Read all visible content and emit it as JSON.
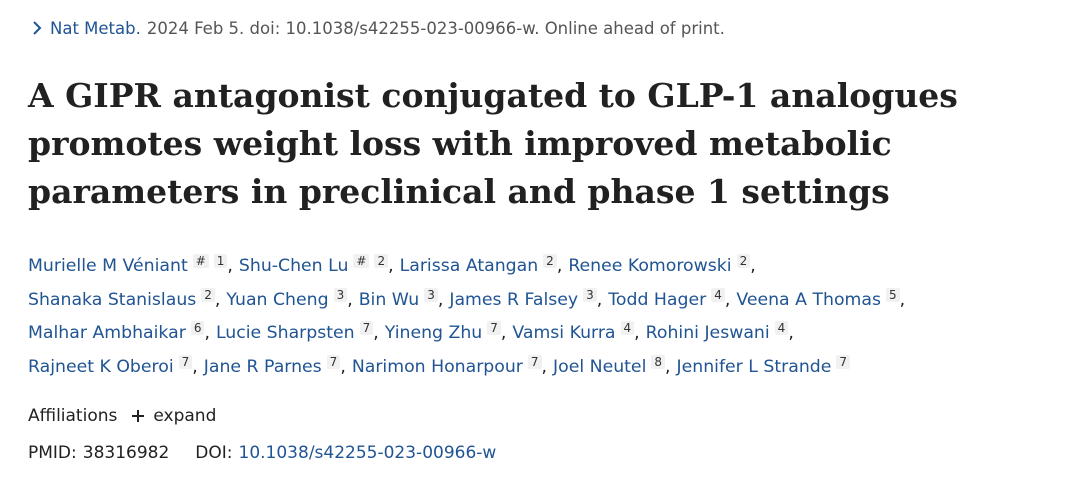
{
  "citation": {
    "journal": "Nat Metab.",
    "details": "2024 Feb 5. doi: 10.1038/s42255-023-00966-w. Online ahead of print."
  },
  "title_lines": [
    "A GIPR antagonist conjugated to GLP-1 analogues",
    "promotes weight loss with improved metabolic",
    "parameters in preclinical and phase 1 settings"
  ],
  "authors": [
    {
      "name": "Murielle M Véniant",
      "sup": [
        "#",
        "1"
      ]
    },
    {
      "name": "Shu-Chen Lu",
      "sup": [
        "#",
        "2"
      ]
    },
    {
      "name": "Larissa Atangan",
      "sup": [
        "2"
      ]
    },
    {
      "name": "Renee Komorowski",
      "sup": [
        "2"
      ]
    },
    {
      "name": "Shanaka Stanislaus",
      "sup": [
        "2"
      ]
    },
    {
      "name": "Yuan Cheng",
      "sup": [
        "3"
      ]
    },
    {
      "name": "Bin Wu",
      "sup": [
        "3"
      ]
    },
    {
      "name": "James R Falsey",
      "sup": [
        "3"
      ]
    },
    {
      "name": "Todd Hager",
      "sup": [
        "4"
      ]
    },
    {
      "name": "Veena A Thomas",
      "sup": [
        "5"
      ]
    },
    {
      "name": "Malhar Ambhaikar",
      "sup": [
        "6"
      ]
    },
    {
      "name": "Lucie Sharpsten",
      "sup": [
        "7"
      ]
    },
    {
      "name": "Yineng Zhu",
      "sup": [
        "7"
      ]
    },
    {
      "name": "Vamsi Kurra",
      "sup": [
        "4"
      ]
    },
    {
      "name": "Rohini Jeswani",
      "sup": [
        "4"
      ]
    },
    {
      "name": "Rajneet K Oberoi",
      "sup": [
        "7"
      ]
    },
    {
      "name": "Jane R Parnes",
      "sup": [
        "7"
      ]
    },
    {
      "name": "Narimon Honarpour",
      "sup": [
        "7"
      ]
    },
    {
      "name": "Joel Neutel",
      "sup": [
        "8"
      ]
    },
    {
      "name": "Jennifer L Strande",
      "sup": [
        "7"
      ]
    }
  ],
  "affiliations": {
    "label": "Affiliations",
    "expand_label": "expand"
  },
  "ids": {
    "pmid_label": "PMID:",
    "pmid": "38316982",
    "doi_label": "DOI:",
    "doi": "10.1038/s42255-023-00966-w"
  },
  "colors": {
    "link": "#205493",
    "text": "#212121",
    "muted": "#555555"
  },
  "icons": {
    "citation": "chevron-right-icon",
    "expand": "plus-icon"
  }
}
